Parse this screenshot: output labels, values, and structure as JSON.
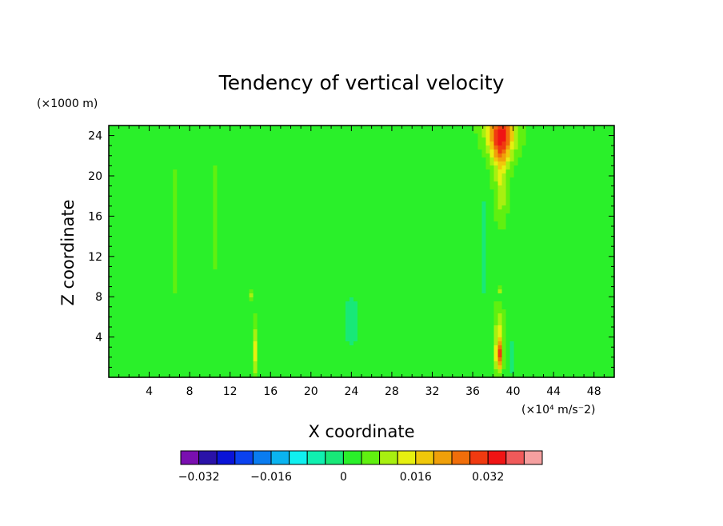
{
  "chart_data": {
    "type": "heatmap",
    "title": "Tendency of vertical velocity",
    "xlabel": "X coordinate",
    "ylabel": "Z coordinate",
    "y_unit_note": "(×1000 m)",
    "x_unit_note": "(×10⁴ m/s⁻2)",
    "xlim": [
      0,
      50
    ],
    "ylim": [
      0,
      25
    ],
    "x_ticks": [
      4,
      8,
      12,
      16,
      20,
      24,
      28,
      32,
      36,
      40,
      44,
      48
    ],
    "y_ticks": [
      4,
      8,
      12,
      16,
      20,
      24
    ],
    "colorbar": {
      "levels": [
        -0.036,
        -0.032,
        -0.028,
        -0.024,
        -0.02,
        -0.016,
        -0.012,
        -0.008,
        -0.004,
        0,
        0.004,
        0.008,
        0.012,
        0.016,
        0.02,
        0.024,
        0.028,
        0.032,
        0.036,
        0.04
      ],
      "colors": [
        "#7a0fb0",
        "#2a12a8",
        "#0a14d8",
        "#0b42f0",
        "#0a7cf0",
        "#0ab4f0",
        "#10f0f0",
        "#10f0b0",
        "#18e878",
        "#2af02a",
        "#60f010",
        "#a8f010",
        "#e6f010",
        "#f0c80a",
        "#f0a00a",
        "#f06e0a",
        "#f03a10",
        "#f01414",
        "#f05a5a",
        "#f5a0a0"
      ],
      "tick_values": [
        -0.032,
        -0.016,
        0,
        0.016,
        0.032
      ],
      "tick_labels": [
        "−0.032",
        "−0.016",
        "0",
        "0.016",
        "0.032"
      ]
    },
    "background_value": 0.003,
    "features": [
      {
        "x": 38.8,
        "z": 24.5,
        "value": 0.028
      },
      {
        "x": 38.8,
        "z": 22.5,
        "value": 0.02
      },
      {
        "x": 38.8,
        "z": 19.0,
        "value": 0.012
      },
      {
        "x": 38.6,
        "z": 2.2,
        "value": 0.028
      },
      {
        "x": 38.6,
        "z": 4.5,
        "value": 0.012
      },
      {
        "x": 38.6,
        "z": 8.5,
        "value": 0.014
      },
      {
        "x": 38.6,
        "z": 7.9,
        "value": -0.012
      },
      {
        "x": 37.0,
        "z": 13.0,
        "value": -0.008
      },
      {
        "x": 40.5,
        "z": 12.0,
        "value": -0.006
      },
      {
        "x": 14.0,
        "z": 8.1,
        "value": 0.016
      },
      {
        "x": 14.5,
        "z": 2.5,
        "value": 0.014
      },
      {
        "x": 15.8,
        "z": 14.0,
        "value": -0.006
      },
      {
        "x": 40.0,
        "z": 2.0,
        "value": -0.004
      },
      {
        "x": 6.5,
        "z": 14.5,
        "value": 0.006
      },
      {
        "x": 10.5,
        "z": 16.0,
        "value": 0.006
      },
      {
        "x": 24.0,
        "z": 5.5,
        "value": -0.003
      }
    ]
  }
}
